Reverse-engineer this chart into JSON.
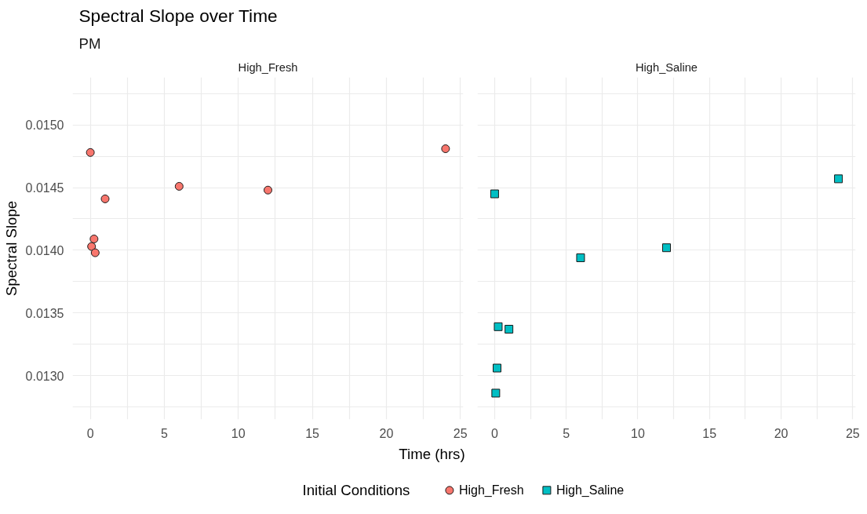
{
  "chart_data": [
    {
      "type": "scatter",
      "title": "Spectral Slope over Time",
      "subtitle": "PM",
      "annotations": [
        "High_Fresh"
      ],
      "xlabel": "Time (hrs)",
      "ylabel": "Spectral Slope",
      "legend_title": "Initial Conditions",
      "legend": "bottom",
      "marker": "circle",
      "grid": true,
      "x": [
        0,
        0.083,
        0.25,
        0.33,
        1,
        6,
        12,
        24
      ],
      "series": [
        {
          "name": "High_Fresh",
          "color": "#f8766d",
          "values": [
            0.01478,
            0.01403,
            0.01409,
            0.01398,
            0.01441,
            0.01451,
            0.01448,
            0.01481
          ]
        }
      ],
      "xlim": [
        -1.2,
        25.2
      ],
      "ylim": [
        0.01265,
        0.01538
      ],
      "xticks": [
        0,
        {
          "value": 2.5,
          "label": null
        },
        5,
        {
          "value": 7.5,
          "label": null
        },
        10,
        {
          "value": 12.5,
          "label": null
        },
        15,
        {
          "value": 17.5,
          "label": null
        },
        20,
        {
          "value": 22.5,
          "label": null
        },
        25
      ],
      "yticks": [
        {
          "value": 0.01275,
          "label": null
        },
        {
          "value": 0.013,
          "label": "0.0130"
        },
        {
          "value": 0.01325,
          "label": null
        },
        {
          "value": 0.0135,
          "label": "0.0135"
        },
        {
          "value": 0.01375,
          "label": null
        },
        {
          "value": 0.014,
          "label": "0.0140"
        },
        {
          "value": 0.01425,
          "label": null
        },
        {
          "value": 0.0145,
          "label": "0.0145"
        },
        {
          "value": 0.01475,
          "label": null
        },
        {
          "value": 0.015,
          "label": "0.0150"
        },
        {
          "value": 0.01525,
          "label": null
        }
      ]
    },
    {
      "type": "scatter",
      "annotations": [
        "High_Saline"
      ],
      "legend": "bottom",
      "marker": "square",
      "grid": true,
      "tick_labels": "x",
      "x": [
        0,
        0.25,
        1,
        6,
        12,
        24,
        0.17,
        0.08
      ],
      "series": [
        {
          "name": "High_Saline",
          "color": "#00bfc4",
          "values": [
            0.01445,
            0.01339,
            0.01337,
            0.01394,
            0.01402,
            0.01457,
            0.01306,
            0.01286
          ]
        }
      ],
      "xlim": [
        -1.2,
        25.2
      ],
      "ylim": [
        0.01265,
        0.01538
      ],
      "xticks": [
        0,
        {
          "value": 2.5,
          "label": null
        },
        5,
        {
          "value": 7.5,
          "label": null
        },
        10,
        {
          "value": 12.5,
          "label": null
        },
        15,
        {
          "value": 17.5,
          "label": null
        },
        20,
        {
          "value": 22.5,
          "label": null
        },
        25
      ],
      "yticks": [
        {
          "value": 0.01275,
          "label": null
        },
        {
          "value": 0.013,
          "label": null
        },
        {
          "value": 0.01325,
          "label": null
        },
        {
          "value": 0.0135,
          "label": null
        },
        {
          "value": 0.01375,
          "label": null
        },
        {
          "value": 0.014,
          "label": null
        },
        {
          "value": 0.01425,
          "label": null
        },
        {
          "value": 0.0145,
          "label": null
        },
        {
          "value": 0.01475,
          "label": null
        },
        {
          "value": 0.015,
          "label": null
        },
        {
          "value": 0.01525,
          "label": null
        }
      ]
    }
  ]
}
